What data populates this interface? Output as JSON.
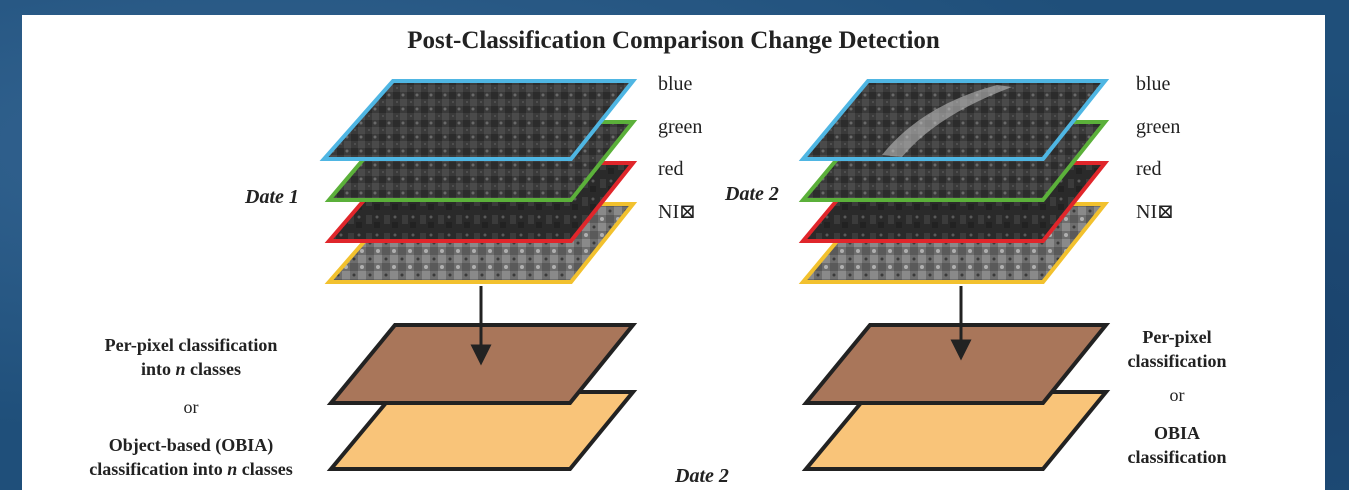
{
  "title": "Post-Classification Comparison Change Detection",
  "bands": [
    "blue",
    "green",
    "red",
    "NI⊠"
  ],
  "left": {
    "date_label": "Date 1",
    "classification": {
      "line1": "Per-pixel classification",
      "line2_prefix": "into ",
      "line2_italic": "n",
      "line2_suffix": " classes",
      "or": "or",
      "line3": "Object-based (OBIA)",
      "line4_prefix": "classification into ",
      "line4_italic": "n",
      "line4_suffix": " classes"
    }
  },
  "right": {
    "date_label": "Date 2",
    "classification": {
      "line1": "Per-pixel",
      "line2": "classification",
      "or": "or",
      "line3": "OBIA",
      "line4": "classification"
    }
  },
  "bottom_date_label": "Date 2",
  "colors": {
    "blue_outline": "#4fb6e3",
    "green_outline": "#5bb03a",
    "red_outline": "#e0262b",
    "yellow_outline": "#f2c12e",
    "perpixel_fill": "#a9765a",
    "obia_fill": "#f9c479"
  }
}
